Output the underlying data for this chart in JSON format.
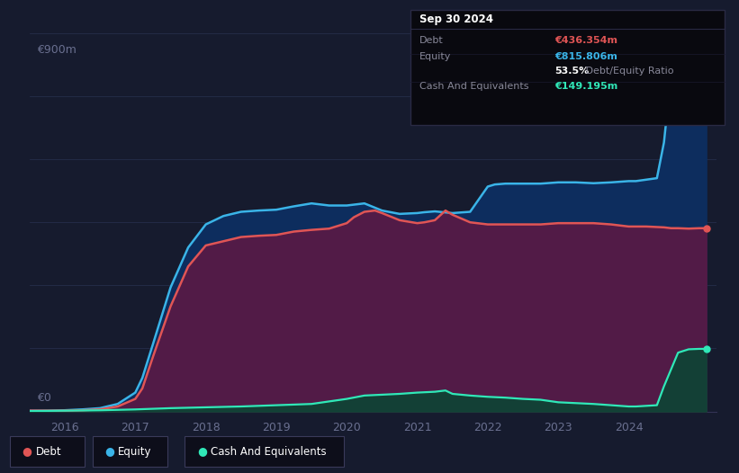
{
  "background_color": "#161b2e",
  "plot_bg_color": "#161b2e",
  "grid_color": "#252d4a",
  "ylabel_text": "€900m",
  "y0_text": "€0",
  "ylim": [
    0,
    900
  ],
  "xlim_start": 2015.5,
  "xlim_end": 2025.25,
  "xtick_labels": [
    "2016",
    "2017",
    "2018",
    "2019",
    "2020",
    "2021",
    "2022",
    "2023",
    "2024"
  ],
  "xtick_positions": [
    2016,
    2017,
    2018,
    2019,
    2020,
    2021,
    2022,
    2023,
    2024
  ],
  "debt_color": "#e05555",
  "equity_color": "#3ab4e8",
  "cash_color": "#30e8b8",
  "tooltip_bg": "#090910",
  "tooltip_border": "#2a2a44",
  "tooltip_title": "Sep 30 2024",
  "tooltip_debt_label": "Debt",
  "tooltip_debt_value": "€436.354m",
  "tooltip_equity_label": "Equity",
  "tooltip_equity_value": "€815.806m",
  "tooltip_ratio_pct": "53.5%",
  "tooltip_ratio_label": "Debt/Equity Ratio",
  "tooltip_cash_label": "Cash And Equivalents",
  "tooltip_cash_value": "€149.195m",
  "legend_debt": "Debt",
  "legend_equity": "Equity",
  "legend_cash": "Cash And Equivalents",
  "equity_x": [
    2015.5,
    2015.75,
    2016.0,
    2016.25,
    2016.5,
    2016.75,
    2017.0,
    2017.1,
    2017.25,
    2017.5,
    2017.75,
    2018.0,
    2018.25,
    2018.5,
    2018.75,
    2019.0,
    2019.25,
    2019.5,
    2019.75,
    2020.0,
    2020.1,
    2020.25,
    2020.5,
    2020.75,
    2021.0,
    2021.1,
    2021.25,
    2021.5,
    2021.75,
    2022.0,
    2022.1,
    2022.25,
    2022.5,
    2022.75,
    2023.0,
    2023.25,
    2023.5,
    2023.75,
    2024.0,
    2024.1,
    2024.4,
    2024.5,
    2024.55,
    2024.7,
    2024.85,
    2025.0,
    2025.1
  ],
  "equity_y": [
    2,
    2,
    3,
    5,
    8,
    18,
    45,
    80,
    160,
    295,
    390,
    445,
    465,
    475,
    478,
    480,
    488,
    495,
    490,
    490,
    492,
    495,
    478,
    470,
    472,
    474,
    476,
    472,
    475,
    535,
    540,
    542,
    542,
    542,
    545,
    545,
    543,
    545,
    548,
    548,
    555,
    640,
    720,
    810,
    815,
    815,
    815
  ],
  "debt_x": [
    2015.5,
    2015.75,
    2016.0,
    2016.25,
    2016.5,
    2016.75,
    2017.0,
    2017.1,
    2017.25,
    2017.5,
    2017.75,
    2018.0,
    2018.25,
    2018.5,
    2018.75,
    2019.0,
    2019.25,
    2019.5,
    2019.75,
    2020.0,
    2020.1,
    2020.25,
    2020.4,
    2020.5,
    2020.75,
    2021.0,
    2021.1,
    2021.25,
    2021.4,
    2021.5,
    2021.75,
    2022.0,
    2022.25,
    2022.5,
    2022.75,
    2023.0,
    2023.25,
    2023.5,
    2023.75,
    2024.0,
    2024.25,
    2024.5,
    2024.6,
    2024.7,
    2024.85,
    2025.0,
    2025.1
  ],
  "debt_y": [
    2,
    2,
    2,
    3,
    5,
    12,
    30,
    55,
    130,
    250,
    345,
    395,
    405,
    415,
    418,
    420,
    428,
    432,
    435,
    448,
    462,
    475,
    478,
    472,
    455,
    448,
    450,
    455,
    478,
    468,
    450,
    445,
    445,
    445,
    445,
    448,
    448,
    448,
    445,
    440,
    440,
    438,
    436,
    436,
    435,
    436,
    436
  ],
  "cash_x": [
    2015.5,
    2016.0,
    2016.5,
    2017.0,
    2017.5,
    2018.0,
    2018.5,
    2019.0,
    2019.5,
    2020.0,
    2020.25,
    2020.5,
    2020.75,
    2021.0,
    2021.25,
    2021.4,
    2021.5,
    2021.75,
    2022.0,
    2022.25,
    2022.5,
    2022.75,
    2023.0,
    2023.25,
    2023.5,
    2023.75,
    2024.0,
    2024.1,
    2024.4,
    2024.5,
    2024.6,
    2024.7,
    2024.85,
    2025.0,
    2025.1
  ],
  "cash_y": [
    1,
    2,
    3,
    5,
    8,
    10,
    12,
    15,
    18,
    30,
    38,
    40,
    42,
    45,
    47,
    50,
    42,
    38,
    35,
    33,
    30,
    28,
    22,
    20,
    18,
    15,
    12,
    12,
    15,
    60,
    100,
    140,
    148,
    149,
    149
  ]
}
